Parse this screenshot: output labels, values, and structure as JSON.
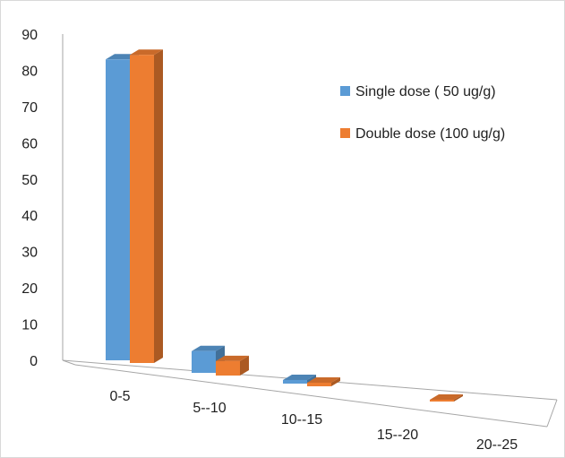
{
  "chart_data": {
    "type": "bar",
    "categories": [
      "0-5",
      "5--10",
      "10--15",
      "15--20",
      "20--25"
    ],
    "series": [
      {
        "name": "Single dose ( 50 ug/g)",
        "values": [
          83,
          6,
          1,
          0,
          0
        ],
        "color": "#5b9bd5"
      },
      {
        "name": "Double dose (100 ug/g)",
        "values": [
          85,
          4,
          1,
          0.5,
          0
        ],
        "color": "#ed7d31"
      }
    ],
    "ylim": [
      0,
      90
    ],
    "yticks": [
      0,
      10,
      20,
      30,
      40,
      50,
      60,
      70,
      80,
      90
    ],
    "title": "",
    "xlabel": "",
    "ylabel": "",
    "grid": false,
    "legend_position": "top-right"
  },
  "colors": {
    "border": "#d9d9d9",
    "axis": "#a6a6a6"
  }
}
